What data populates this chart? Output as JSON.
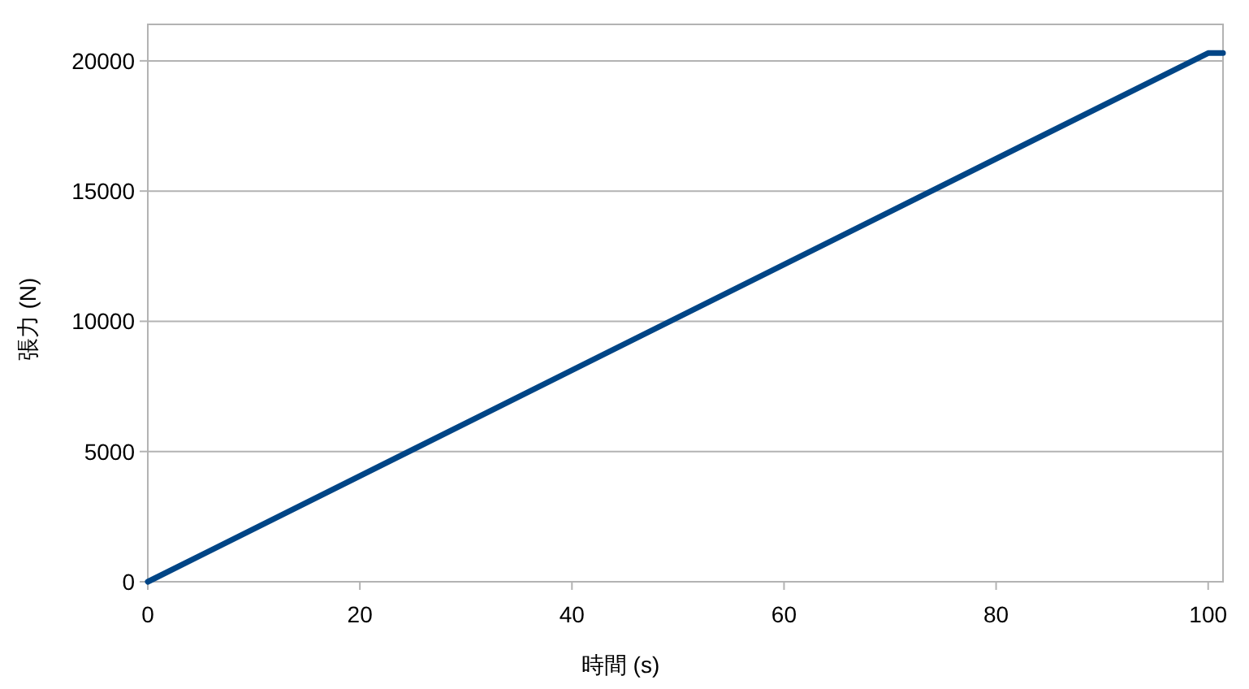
{
  "chart_data": {
    "type": "line",
    "xlabel": "時間 (s)",
    "ylabel": "張力 (N)",
    "x": [
      0,
      100,
      101.4
    ],
    "series": [
      {
        "color": "#004586",
        "values": [
          0,
          20300,
          20300
        ]
      }
    ],
    "xlim": [
      0,
      101.4
    ],
    "ylim": [
      0,
      21400
    ],
    "xticks": [
      0,
      20,
      40,
      60,
      80,
      100
    ],
    "yticks": [
      0,
      5000,
      10000,
      15000,
      20000
    ],
    "grid": "y",
    "line_style": "solid"
  }
}
